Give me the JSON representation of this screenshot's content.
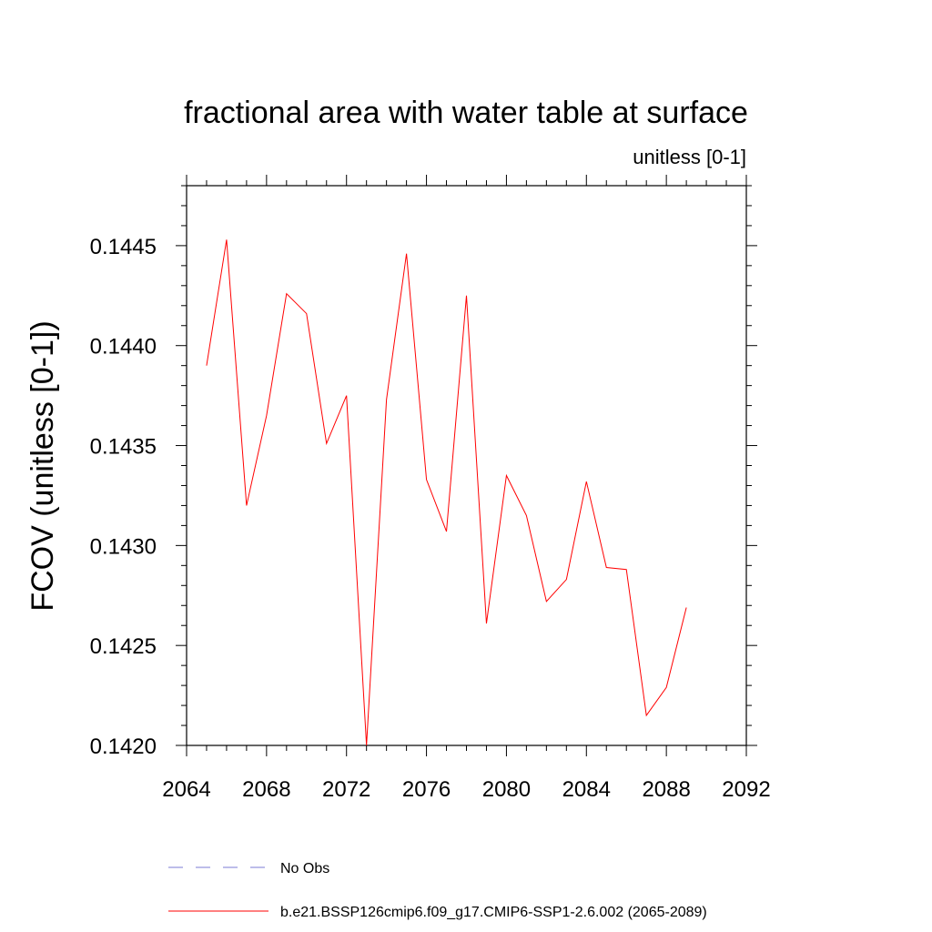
{
  "chart_data": {
    "type": "line",
    "title": "fractional area with water table at surface",
    "subtitle": "unitless [0-1]",
    "ylabel": "FCOV  (unitless [0-1])",
    "xlabel": "",
    "xlim": [
      2064,
      2092
    ],
    "ylim": [
      0.142,
      0.1448
    ],
    "xticks": [
      2064,
      2068,
      2072,
      2076,
      2080,
      2084,
      2088,
      2092
    ],
    "xtick_labels": [
      "2064",
      "2068",
      "2072",
      "2076",
      "2080",
      "2084",
      "2088",
      "2092"
    ],
    "yticks": [
      0.142,
      0.1425,
      0.143,
      0.1435,
      0.144,
      0.1445
    ],
    "ytick_labels": [
      "0.1420",
      "0.1425",
      "0.1430",
      "0.1435",
      "0.1440",
      "0.1445"
    ],
    "grid": false,
    "legend_position": "bottom",
    "series": [
      {
        "name": "b.e21.BSSP126cmip6.f09_g17.CMIP6-SSP1-2.6.002 (2065-2089)",
        "color": "#ff0000",
        "style": "solid",
        "x": [
          2065,
          2066,
          2067,
          2068,
          2069,
          2070,
          2071,
          2072,
          2073,
          2074,
          2075,
          2076,
          2077,
          2078,
          2079,
          2080,
          2081,
          2082,
          2083,
          2084,
          2085,
          2086,
          2087,
          2088,
          2089
        ],
        "values": [
          0.1439,
          0.14453,
          0.1432,
          0.14365,
          0.14426,
          0.14416,
          0.14351,
          0.14375,
          0.142,
          0.14373,
          0.14446,
          0.14333,
          0.14307,
          0.14425,
          0.14261,
          0.14335,
          0.14315,
          0.14272,
          0.14283,
          0.14332,
          0.14289,
          0.14288,
          0.14215,
          0.14229,
          0.14269
        ]
      }
    ],
    "legend": [
      {
        "label": "No Obs",
        "color": "#7b7bd6",
        "style": "dashed"
      },
      {
        "label": "b.e21.BSSP126cmip6.f09_g17.CMIP6-SSP1-2.6.002 (2065-2089)",
        "color": "#ff0000",
        "style": "solid"
      }
    ]
  }
}
